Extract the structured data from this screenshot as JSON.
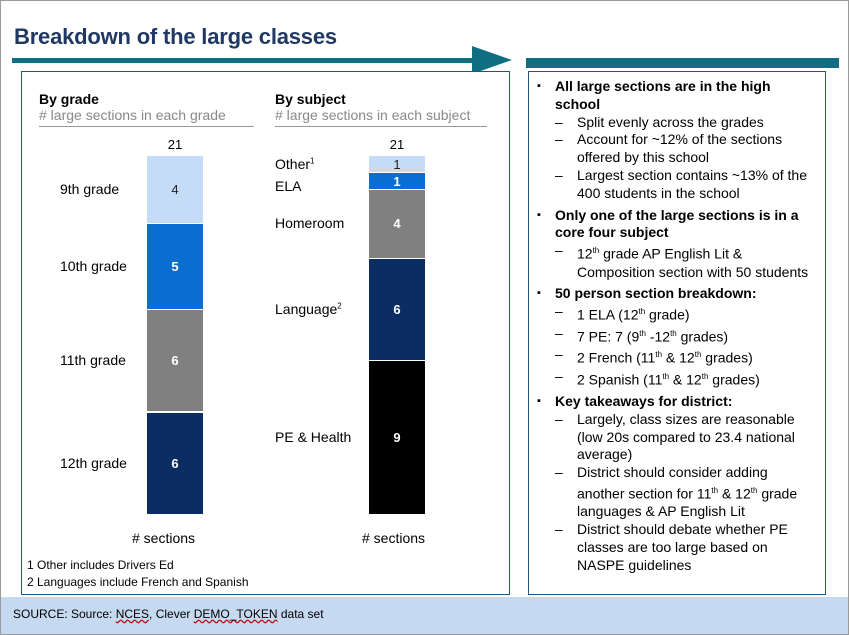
{
  "title": "Breakdown of the large classes",
  "colors": {
    "accent": "#0f6e82",
    "title_text": "#1f3864",
    "grade_9": "#c5dcf7",
    "grade_10": "#0a6dd0",
    "grade_11": "#808080",
    "grade_12": "#0b2d63",
    "other": "#c5dcf7",
    "ela": "#0a6dd0",
    "homeroom": "#808080",
    "language": "#0b2d63",
    "pe_health": "#000000",
    "source_bg": "#c5d9f0"
  },
  "chart_data": [
    {
      "type": "bar",
      "stacked": true,
      "title": "By grade",
      "subtitle": "# large sections in each grade",
      "xlabel": "# sections",
      "total": "21",
      "series": [
        {
          "name": "9th grade",
          "value": 4
        },
        {
          "name": "10th grade",
          "value": 5
        },
        {
          "name": "11th grade",
          "value": 6
        },
        {
          "name": "12th grade",
          "value": 6
        }
      ]
    },
    {
      "type": "bar",
      "stacked": true,
      "title": "By subject",
      "subtitle": "# large sections in each subject",
      "xlabel": "# sections",
      "total": "21",
      "series": [
        {
          "name": "Other",
          "sup": "1",
          "value": 1
        },
        {
          "name": "ELA",
          "sup": "",
          "value": 1
        },
        {
          "name": "Homeroom",
          "sup": "",
          "value": 4
        },
        {
          "name": "Language",
          "sup": "2",
          "value": 6
        },
        {
          "name": "PE & Health",
          "sup": "",
          "value": 9
        }
      ]
    }
  ],
  "notes": [
    "1 Other includes Drivers Ed",
    "2 Languages include French and Spanish"
  ],
  "source": {
    "prefix": "SOURCE: Source: ",
    "nces": "NCES",
    "mid": ", Clever ",
    "token": "DEMO_TOKEN",
    "suffix": " data set"
  }
}
